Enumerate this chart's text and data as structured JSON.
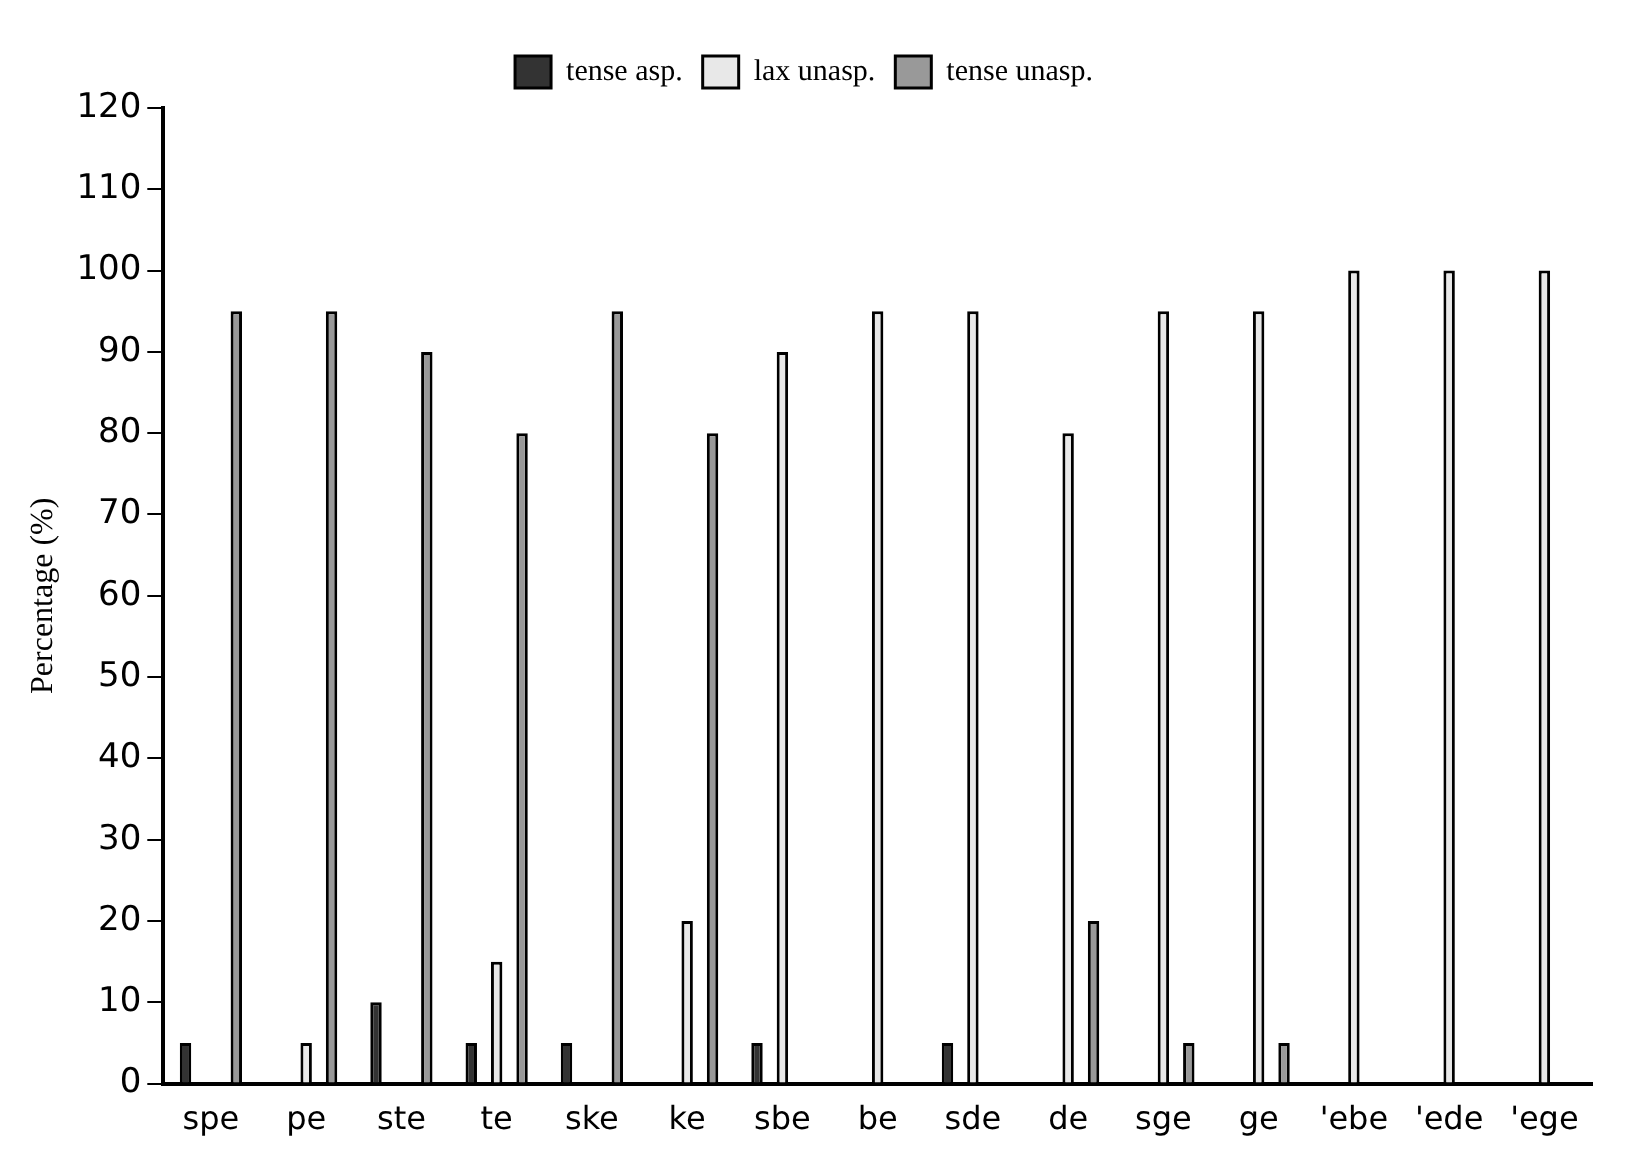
{
  "chart_data": {
    "type": "bar",
    "ylabel": "Percentage (%)",
    "categories": [
      "spe",
      "pe",
      "ste",
      "te",
      "ske",
      "ke",
      "sbe",
      "be",
      "sde",
      "de",
      "sge",
      "ge",
      "'ebe",
      "'ede",
      "'ege"
    ],
    "series": [
      {
        "name": "tense asp.",
        "color": "#333333",
        "values": [
          5,
          0,
          10,
          5,
          5,
          0,
          5,
          0,
          5,
          0,
          0,
          0,
          0,
          0,
          0
        ]
      },
      {
        "name": "lax unasp.",
        "color": "#e8e8e8",
        "values": [
          0,
          5,
          0,
          15,
          0,
          20,
          90,
          95,
          95,
          80,
          95,
          95,
          100,
          100,
          100
        ]
      },
      {
        "name": "tense unasp.",
        "color": "#999999",
        "values": [
          95,
          95,
          90,
          80,
          95,
          80,
          0,
          0,
          0,
          20,
          5,
          5,
          0,
          0,
          0
        ]
      }
    ],
    "ylim": [
      0,
      120
    ],
    "yticks": [
      0,
      10,
      20,
      30,
      40,
      50,
      60,
      70,
      80,
      90,
      100,
      110,
      120
    ],
    "grid": false,
    "legend": "top"
  }
}
